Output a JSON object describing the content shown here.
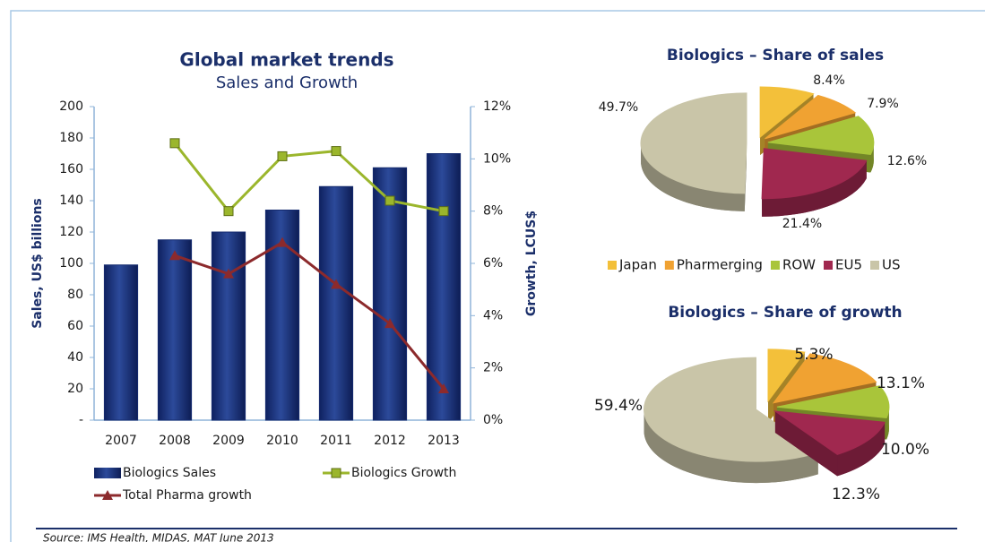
{
  "chart_data": [
    {
      "type": "combo",
      "title": "Global market trends",
      "subtitle": "Sales and Growth",
      "y_label": "Sales, US$ billions",
      "y2_label": "Growth, LCUS$",
      "categories": [
        "2007",
        "2008",
        "2009",
        "2010",
        "2011",
        "2012",
        "2013"
      ],
      "series": [
        {
          "name": "Biologics Sales",
          "type": "bar",
          "color": "#142a6e",
          "values": [
            99,
            115,
            120,
            134,
            149,
            161,
            170
          ]
        },
        {
          "name": "Biologics Growth",
          "type": "line",
          "axis": "y2",
          "color": "#9bb62c",
          "marker": "square",
          "values": [
            null,
            10.6,
            8.0,
            10.1,
            10.3,
            8.4,
            8.0
          ]
        },
        {
          "name": "Total Pharma growth",
          "type": "line",
          "axis": "y2",
          "color": "#8c2a2c",
          "marker": "triangle",
          "values": [
            null,
            6.3,
            5.6,
            6.8,
            5.2,
            3.7,
            1.2
          ]
        }
      ],
      "ylim": [
        0,
        200
      ],
      "yticks": [
        {
          "value": 0,
          "label": "-"
        },
        20,
        40,
        60,
        80,
        100,
        120,
        140,
        160,
        180,
        200
      ],
      "y2lim": [
        0,
        12
      ],
      "y2ticks": [
        {
          "value": 0,
          "label": "0%"
        },
        {
          "value": 2,
          "label": "2%"
        },
        {
          "value": 4,
          "label": "4%"
        },
        {
          "value": 6,
          "label": "6%"
        },
        {
          "value": 8,
          "label": "8%"
        },
        {
          "value": 10,
          "label": "10%"
        },
        {
          "value": 12,
          "label": "12%"
        }
      ]
    },
    {
      "type": "pie",
      "title": "Biologics – Share of sales",
      "categories": [
        "Japan",
        "Pharmerging",
        "ROW",
        "EU5",
        "US"
      ],
      "values": [
        8.4,
        7.9,
        12.6,
        21.4,
        49.7
      ],
      "value_labels": [
        "8.4%",
        "7.9%",
        "12.6%",
        "21.4%",
        "49.7%"
      ],
      "colors": [
        "#f3c03a",
        "#f0a232",
        "#a9c53a",
        "#a0284f",
        "#c9c5a8"
      ]
    },
    {
      "type": "pie",
      "title": "Biologics – Share of growth",
      "values": [
        5.3,
        13.1,
        10.0,
        12.3,
        59.4
      ],
      "value_labels": [
        "5.3%",
        "13.1%",
        "10.0%",
        "12.3%",
        "59.4%"
      ],
      "colors": [
        "#f3c03a",
        "#f0a232",
        "#a9c53a",
        "#a0284f",
        "#c9c5a8"
      ]
    }
  ],
  "source": "Source: IMS Health, MIDAS, MAT June 2013"
}
